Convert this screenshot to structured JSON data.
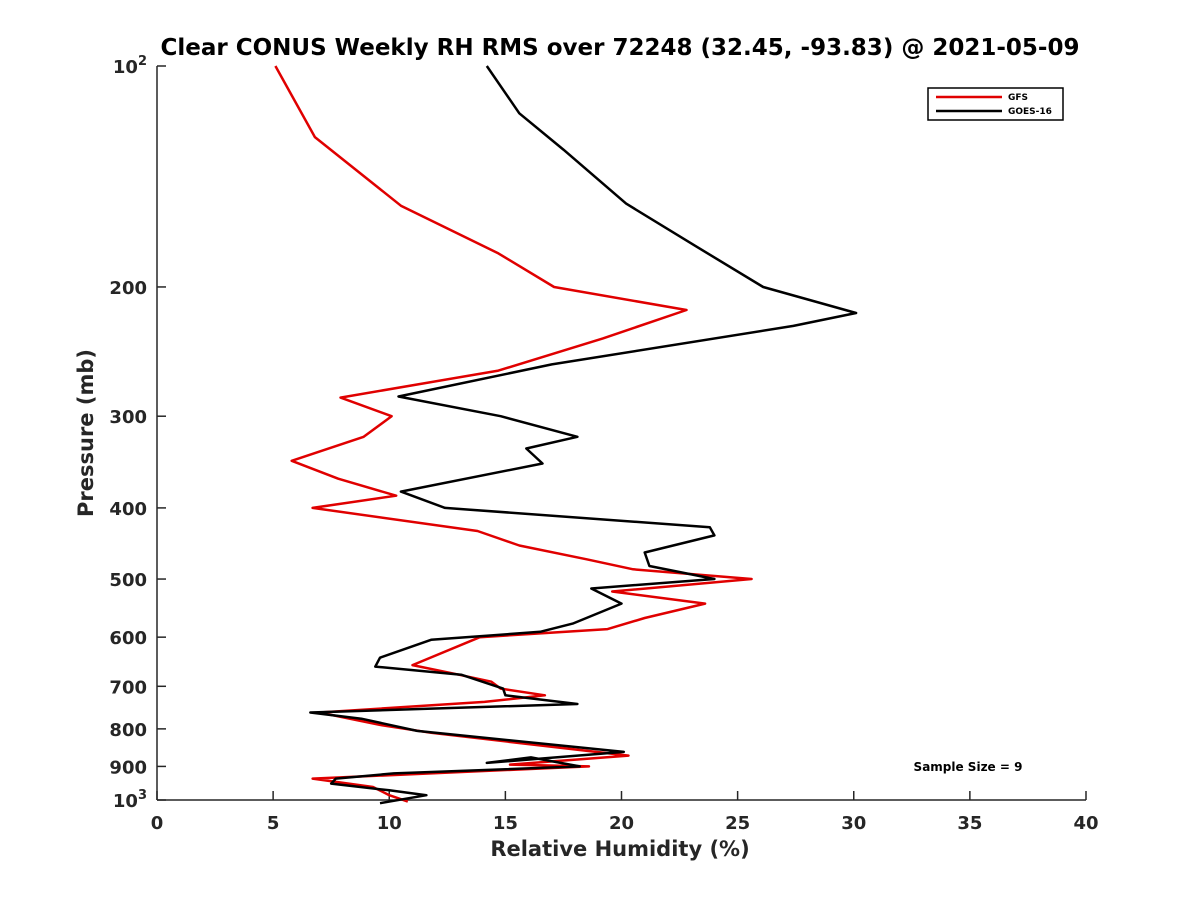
{
  "chart_data": {
    "type": "line",
    "title": "Clear CONUS Weekly RH RMS over 72248 (32.45, -93.83) @ 2021-05-09",
    "xlabel": "Relative Humidity (%)",
    "ylabel": "Pressure (mb)",
    "xlim": [
      0,
      40
    ],
    "ylim": [
      100,
      1000
    ],
    "yscale": "log",
    "y_reversed": true,
    "x_ticks": [
      0,
      5,
      10,
      15,
      20,
      25,
      30,
      35,
      40
    ],
    "x_tick_labels": [
      "0",
      "5",
      "10",
      "15",
      "20",
      "25",
      "30",
      "35",
      "40"
    ],
    "y_ticks": [
      100,
      200,
      300,
      400,
      500,
      600,
      700,
      800,
      900,
      1000
    ],
    "y_tick_labels": [
      {
        "base": "10",
        "exp": "2"
      },
      {
        "base": "200"
      },
      {
        "base": "300"
      },
      {
        "base": "400"
      },
      {
        "base": "500"
      },
      {
        "base": "600"
      },
      {
        "base": "700"
      },
      {
        "base": "800"
      },
      {
        "base": "900"
      },
      {
        "base": "10",
        "exp": "3"
      }
    ],
    "grid": false,
    "legend_position": "top-right",
    "annotation": "Sample Size = 9",
    "series": [
      {
        "name": "GFS",
        "color": "#e00000",
        "x": [
          5.1,
          6.8,
          10.5,
          14.7,
          17.1,
          22.8,
          19.2,
          14.7,
          7.9,
          10.1,
          8.9,
          5.8,
          7.8,
          10.3,
          6.7,
          13.8,
          15.6,
          18.5,
          20.5,
          25.6,
          19.6,
          23.6,
          21.0,
          19.4,
          13.9,
          11.0,
          13.0,
          14.4,
          14.8,
          16.7,
          14.1,
          7.0,
          9.6,
          11.8,
          20.3,
          15.2,
          18.6,
          6.7,
          9.3,
          10.0,
          10.8
        ],
        "y": [
          100,
          125,
          155,
          180,
          200,
          215,
          235,
          260,
          283,
          300,
          320,
          345,
          365,
          385,
          400,
          430,
          450,
          470,
          485,
          500,
          520,
          540,
          565,
          585,
          600,
          655,
          675,
          690,
          705,
          720,
          735,
          760,
          790,
          810,
          870,
          895,
          900,
          935,
          960,
          985,
          1005
        ]
      },
      {
        "name": "GOES-16",
        "color": "#000000",
        "x": [
          14.2,
          15.6,
          17.5,
          20.2,
          23.2,
          26.1,
          30.1,
          27.4,
          17.0,
          10.4,
          14.8,
          18.1,
          15.9,
          16.6,
          10.5,
          12.4,
          23.8,
          24.0,
          21.0,
          21.2,
          24.0,
          18.7,
          20.0,
          17.9,
          16.5,
          11.8,
          9.6,
          9.4,
          13.1,
          14.9,
          15.0,
          18.1,
          6.6,
          8.8,
          11.2,
          20.1,
          14.2,
          16.1,
          18.2,
          10.2,
          7.7,
          7.5,
          10.0,
          11.6,
          9.6
        ],
        "y": [
          100,
          116,
          130,
          154,
          176,
          200,
          217,
          226,
          255,
          282,
          300,
          320,
          332,
          348,
          380,
          400,
          425,
          436,
          460,
          480,
          500,
          515,
          540,
          575,
          590,
          605,
          640,
          658,
          675,
          705,
          720,
          740,
          760,
          775,
          805,
          860,
          890,
          875,
          900,
          920,
          935,
          950,
          970,
          985,
          1010
        ]
      }
    ]
  }
}
